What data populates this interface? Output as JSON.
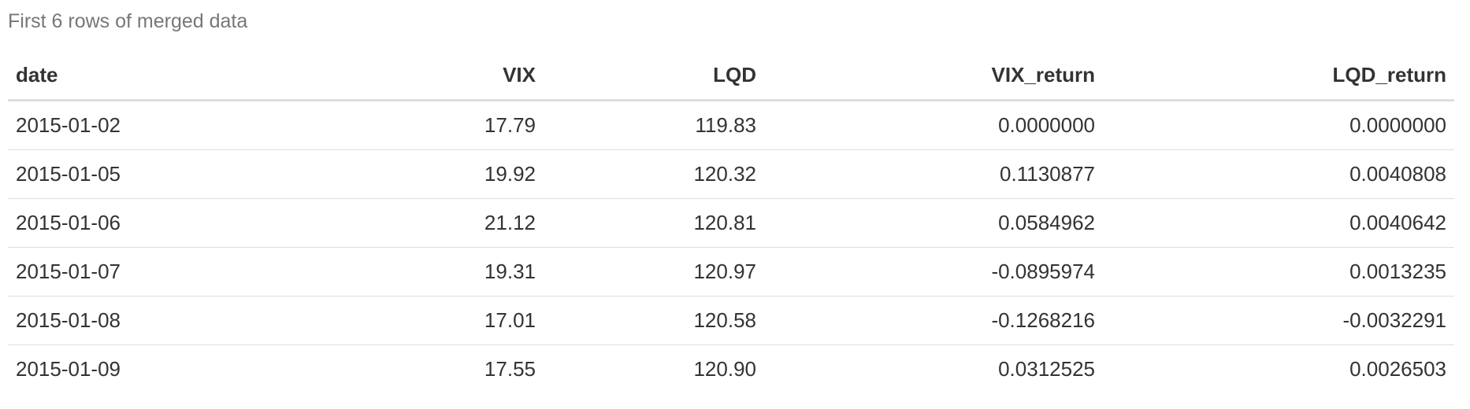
{
  "caption": "First 6 rows of merged data",
  "table": {
    "headers": [
      "date",
      "VIX",
      "LQD",
      "VIX_return",
      "LQD_return"
    ],
    "rows": [
      [
        "2015-01-02",
        "17.79",
        "119.83",
        "0.0000000",
        "0.0000000"
      ],
      [
        "2015-01-05",
        "19.92",
        "120.32",
        "0.1130877",
        "0.0040808"
      ],
      [
        "2015-01-06",
        "21.12",
        "120.81",
        "0.0584962",
        "0.0040642"
      ],
      [
        "2015-01-07",
        "19.31",
        "120.97",
        "-0.0895974",
        "0.0013235"
      ],
      [
        "2015-01-08",
        "17.01",
        "120.58",
        "-0.1268216",
        "-0.0032291"
      ],
      [
        "2015-01-09",
        "17.55",
        "120.90",
        "0.0312525",
        "0.0026503"
      ]
    ]
  }
}
